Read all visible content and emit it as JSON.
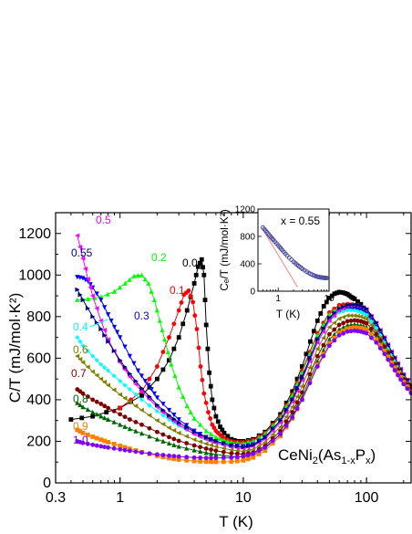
{
  "chart_data": [
    {
      "type": "scatter",
      "xscale": "log",
      "xlim": [
        0.3,
        230
      ],
      "ylim": [
        0,
        1300
      ],
      "xlabel": "T (K)",
      "ylabel": "C/T (mJ/mol·K²)",
      "xticks": [
        "0.3",
        "1",
        "10",
        "100"
      ],
      "yticks": [
        "0",
        "200",
        "400",
        "600",
        "800",
        "1000",
        "1200"
      ],
      "annotation": "CeNi₂(As₁₋ₓPₓ)",
      "series": [
        {
          "name": "0.0",
          "color": "#000000",
          "marker": "square",
          "x": [
            0.4,
            0.6,
            1.0,
            1.5,
            2.0,
            2.5,
            3.0,
            3.5,
            4.0,
            4.3,
            4.6,
            4.8,
            5.0,
            5.3,
            5.6,
            6.0,
            6.5,
            7.0,
            8.0,
            9.0,
            10,
            12,
            15,
            20,
            25,
            30,
            35,
            40,
            45,
            50,
            55,
            60,
            65,
            70,
            75,
            80,
            90,
            100,
            110,
            120,
            140,
            160,
            180,
            200,
            230
          ],
          "y": [
            305,
            320,
            360,
            420,
            500,
            590,
            700,
            830,
            960,
            1040,
            1075,
            1000,
            760,
            530,
            400,
            320,
            270,
            240,
            210,
            200,
            200,
            210,
            245,
            330,
            440,
            560,
            680,
            780,
            850,
            890,
            910,
            918,
            915,
            908,
            895,
            885,
            860,
            825,
            785,
            745,
            670,
            605,
            550,
            505,
            460
          ]
        },
        {
          "name": "0.1",
          "color": "#ff0000",
          "marker": "circle",
          "x": [
            1.0,
            1.5,
            2.0,
            2.5,
            3.0,
            3.3,
            3.6,
            3.9,
            4.2,
            4.5,
            4.8,
            5.2,
            5.6,
            6.0,
            6.5,
            7.0,
            8.0,
            9.0,
            10,
            12,
            15,
            20,
            25,
            30,
            40,
            50,
            60,
            70,
            80,
            90,
            100,
            120,
            140,
            160,
            180,
            200,
            230
          ],
          "y": [
            360,
            440,
            560,
            700,
            830,
            905,
            925,
            870,
            740,
            560,
            430,
            340,
            280,
            250,
            230,
            215,
            200,
            195,
            195,
            205,
            240,
            320,
            425,
            540,
            720,
            820,
            855,
            860,
            855,
            845,
            830,
            760,
            690,
            625,
            570,
            520,
            470
          ]
        },
        {
          "name": "0.2",
          "color": "#00ff00",
          "marker": "triangle",
          "x": [
            0.45,
            0.55,
            0.7,
            0.9,
            1.1,
            1.3,
            1.5,
            1.7,
            1.9,
            2.1,
            2.3,
            2.6,
            3.0,
            3.5,
            4.0,
            5.0,
            6.0,
            7.0,
            8.0,
            10,
            12,
            15,
            20,
            25,
            30,
            40,
            50,
            60,
            70,
            80,
            90,
            100,
            120,
            140,
            160,
            180,
            200,
            230
          ],
          "y": [
            880,
            885,
            895,
            920,
            960,
            995,
            1000,
            960,
            880,
            780,
            690,
            570,
            460,
            370,
            310,
            250,
            220,
            205,
            195,
            190,
            200,
            235,
            315,
            420,
            530,
            710,
            810,
            845,
            850,
            845,
            835,
            820,
            755,
            685,
            620,
            565,
            515,
            465
          ]
        },
        {
          "name": "0.3",
          "color": "#0000ff",
          "marker": "triangle-down",
          "x": [
            0.45,
            0.5,
            0.55,
            0.6,
            0.7,
            0.8,
            0.9,
            1.0,
            1.2,
            1.4,
            1.6,
            1.8,
            2.0,
            2.5,
            3.0,
            4.0,
            5.0,
            6.0,
            8.0,
            10,
            12,
            15,
            20,
            25,
            30,
            40,
            50,
            60,
            70,
            80,
            90,
            100,
            120,
            140,
            160,
            180,
            200,
            230
          ],
          "y": [
            990,
            985,
            970,
            940,
            880,
            810,
            750,
            700,
            610,
            540,
            490,
            450,
            410,
            350,
            305,
            250,
            220,
            200,
            180,
            175,
            185,
            220,
            300,
            400,
            510,
            690,
            790,
            830,
            840,
            838,
            830,
            815,
            750,
            680,
            615,
            560,
            510,
            460
          ]
        },
        {
          "name": "0.4",
          "color": "#00ffff",
          "marker": "diamond",
          "x": [
            0.45,
            0.5,
            0.6,
            0.7,
            0.8,
            1.0,
            1.2,
            1.5,
            2.0,
            2.5,
            3.0,
            4.0,
            5.0,
            6.0,
            8.0,
            10,
            12,
            15,
            20,
            25,
            30,
            40,
            50,
            60,
            70,
            80,
            90,
            100,
            120,
            140,
            160,
            180,
            200,
            230
          ],
          "y": [
            700,
            660,
            610,
            570,
            540,
            490,
            450,
            400,
            345,
            305,
            275,
            235,
            210,
            195,
            175,
            170,
            180,
            215,
            295,
            395,
            500,
            680,
            780,
            820,
            830,
            830,
            822,
            808,
            745,
            675,
            612,
            558,
            508,
            458
          ]
        },
        {
          "name": "0.5",
          "color": "#ff00ff",
          "marker": "triangle-left",
          "x": [
            0.45,
            0.5,
            0.55,
            0.6,
            0.7,
            0.8,
            1.0,
            1.2,
            1.5,
            2.0,
            2.5,
            3.0,
            4.0,
            5.0,
            6.0,
            8.0,
            10,
            12,
            15,
            20,
            25,
            30,
            40,
            50,
            60,
            70,
            80,
            90,
            100,
            120,
            140,
            160,
            180,
            200,
            230
          ],
          "y": [
            1190,
            1080,
            980,
            900,
            780,
            690,
            580,
            510,
            440,
            365,
            315,
            280,
            235,
            210,
            192,
            172,
            165,
            175,
            210,
            290,
            390,
            495,
            675,
            780,
            830,
            850,
            855,
            848,
            835,
            770,
            700,
            632,
            575,
            522,
            470
          ]
        },
        {
          "name": "0.55",
          "color": "#000080",
          "marker": "triangle-right",
          "x": [
            0.45,
            0.5,
            0.6,
            0.7,
            0.8,
            1.0,
            1.2,
            1.5,
            2.0,
            2.5,
            3.0,
            4.0,
            5.0,
            6.0,
            8.0,
            10,
            12,
            15,
            20,
            25,
            30,
            40,
            50,
            60,
            70,
            80,
            90,
            100,
            120,
            140,
            160,
            180,
            200,
            230
          ],
          "y": [
            930,
            880,
            800,
            740,
            680,
            590,
            525,
            455,
            375,
            325,
            290,
            245,
            218,
            200,
            180,
            172,
            182,
            218,
            300,
            400,
            505,
            690,
            795,
            840,
            855,
            858,
            852,
            838,
            772,
            700,
            632,
            575,
            522,
            470
          ]
        },
        {
          "name": "0.6",
          "color": "#808000",
          "marker": "triangle-left",
          "x": [
            0.45,
            0.5,
            0.6,
            0.7,
            0.8,
            1.0,
            1.2,
            1.5,
            2.0,
            2.5,
            3.0,
            4.0,
            5.0,
            6.0,
            8.0,
            10,
            12,
            15,
            20,
            25,
            30,
            40,
            50,
            60,
            70,
            80,
            90,
            100,
            120,
            140,
            160,
            180,
            200,
            230
          ],
          "y": [
            610,
            580,
            535,
            500,
            470,
            425,
            390,
            350,
            300,
            265,
            240,
            208,
            188,
            175,
            158,
            152,
            160,
            195,
            270,
            365,
            465,
            645,
            750,
            790,
            805,
            805,
            800,
            788,
            730,
            665,
            602,
            550,
            502,
            455
          ]
        },
        {
          "name": "0.7",
          "color": "#800000",
          "marker": "circle",
          "x": [
            0.45,
            0.5,
            0.6,
            0.7,
            0.8,
            1.0,
            1.2,
            1.5,
            2.0,
            2.5,
            3.0,
            4.0,
            5.0,
            6.0,
            8.0,
            10,
            12,
            15,
            20,
            25,
            30,
            40,
            50,
            60,
            70,
            80,
            90,
            100,
            120,
            140,
            160,
            180,
            200,
            230
          ],
          "y": [
            450,
            430,
            400,
            380,
            360,
            330,
            305,
            280,
            245,
            220,
            202,
            180,
            165,
            155,
            142,
            138,
            145,
            178,
            250,
            340,
            435,
            610,
            715,
            760,
            778,
            782,
            778,
            768,
            715,
            655,
            595,
            545,
            498,
            452
          ]
        },
        {
          "name": "0.8",
          "color": "#006400",
          "marker": "triangle",
          "x": [
            0.45,
            0.5,
            0.6,
            0.7,
            0.8,
            1.0,
            1.2,
            1.5,
            2.0,
            2.5,
            3.0,
            4.0,
            5.0,
            6.0,
            8.0,
            10,
            12,
            15,
            20,
            25,
            30,
            40,
            50,
            60,
            70,
            80,
            90,
            100,
            120,
            140,
            160,
            180,
            200,
            230
          ],
          "y": [
            385,
            365,
            340,
            320,
            305,
            280,
            260,
            238,
            210,
            190,
            175,
            157,
            145,
            137,
            127,
            125,
            132,
            165,
            235,
            320,
            412,
            585,
            690,
            738,
            758,
            762,
            758,
            750,
            700,
            642,
            585,
            536,
            490,
            445
          ]
        },
        {
          "name": "0.9",
          "color": "#ff8000",
          "marker": "square",
          "x": [
            0.45,
            0.5,
            0.6,
            0.7,
            0.8,
            1.0,
            1.2,
            1.5,
            2.0,
            2.5,
            3.0,
            4.0,
            5.0,
            6.0,
            8.0,
            10,
            12,
            15,
            20,
            25,
            30,
            40,
            50,
            60,
            70,
            80,
            90,
            100,
            120,
            140,
            160,
            180,
            200,
            230
          ],
          "y": [
            255,
            240,
            222,
            208,
            196,
            178,
            164,
            148,
            130,
            119,
            112,
            105,
            102,
            101,
            102,
            108,
            122,
            155,
            225,
            310,
            400,
            568,
            672,
            722,
            742,
            748,
            745,
            738,
            690,
            635,
            578,
            530,
            485,
            440
          ]
        },
        {
          "name": "1.0",
          "color": "#8000ff",
          "marker": "circle",
          "x": [
            0.45,
            0.5,
            0.6,
            0.7,
            0.8,
            1.0,
            1.2,
            1.5,
            2.0,
            2.5,
            3.0,
            4.0,
            5.0,
            6.0,
            8.0,
            10,
            12,
            15,
            20,
            25,
            30,
            40,
            50,
            60,
            70,
            80,
            90,
            100,
            120,
            140,
            160,
            180,
            200,
            230
          ],
          "y": [
            200,
            192,
            183,
            176,
            170,
            161,
            154,
            146,
            137,
            131,
            127,
            122,
            120,
            120,
            122,
            128,
            140,
            170,
            235,
            315,
            400,
            560,
            660,
            710,
            728,
            732,
            728,
            720,
            675,
            620,
            565,
            518,
            475,
            432
          ]
        }
      ]
    },
    {
      "type": "scatter",
      "xscale": "log",
      "xlim": [
        0.4,
        10
      ],
      "ylim": [
        0,
        1200
      ],
      "xlabel": "T (K)",
      "ylabel": "Cₑ/T (mJ/mol·K²)",
      "xticks": [
        "1",
        "10"
      ],
      "yticks": [
        "0",
        "400",
        "800",
        "1200"
      ],
      "annotation": "x = 0.55",
      "series": [
        {
          "color": "#5050a0",
          "marker": "open-circle",
          "x": [
            0.5,
            0.6,
            0.7,
            0.8,
            1.0,
            1.2,
            1.5,
            2.0,
            2.5,
            3.0,
            4.0,
            5.0,
            6.0,
            7.0,
            8.0,
            9.0
          ],
          "y": [
            930,
            860,
            800,
            750,
            670,
            600,
            520,
            430,
            370,
            325,
            265,
            230,
            210,
            200,
            195,
            192
          ]
        }
      ],
      "fit_line": {
        "color": "#ff8080",
        "x": [
          0.5,
          2.4
        ],
        "y": [
          900,
          60
        ]
      }
    }
  ]
}
